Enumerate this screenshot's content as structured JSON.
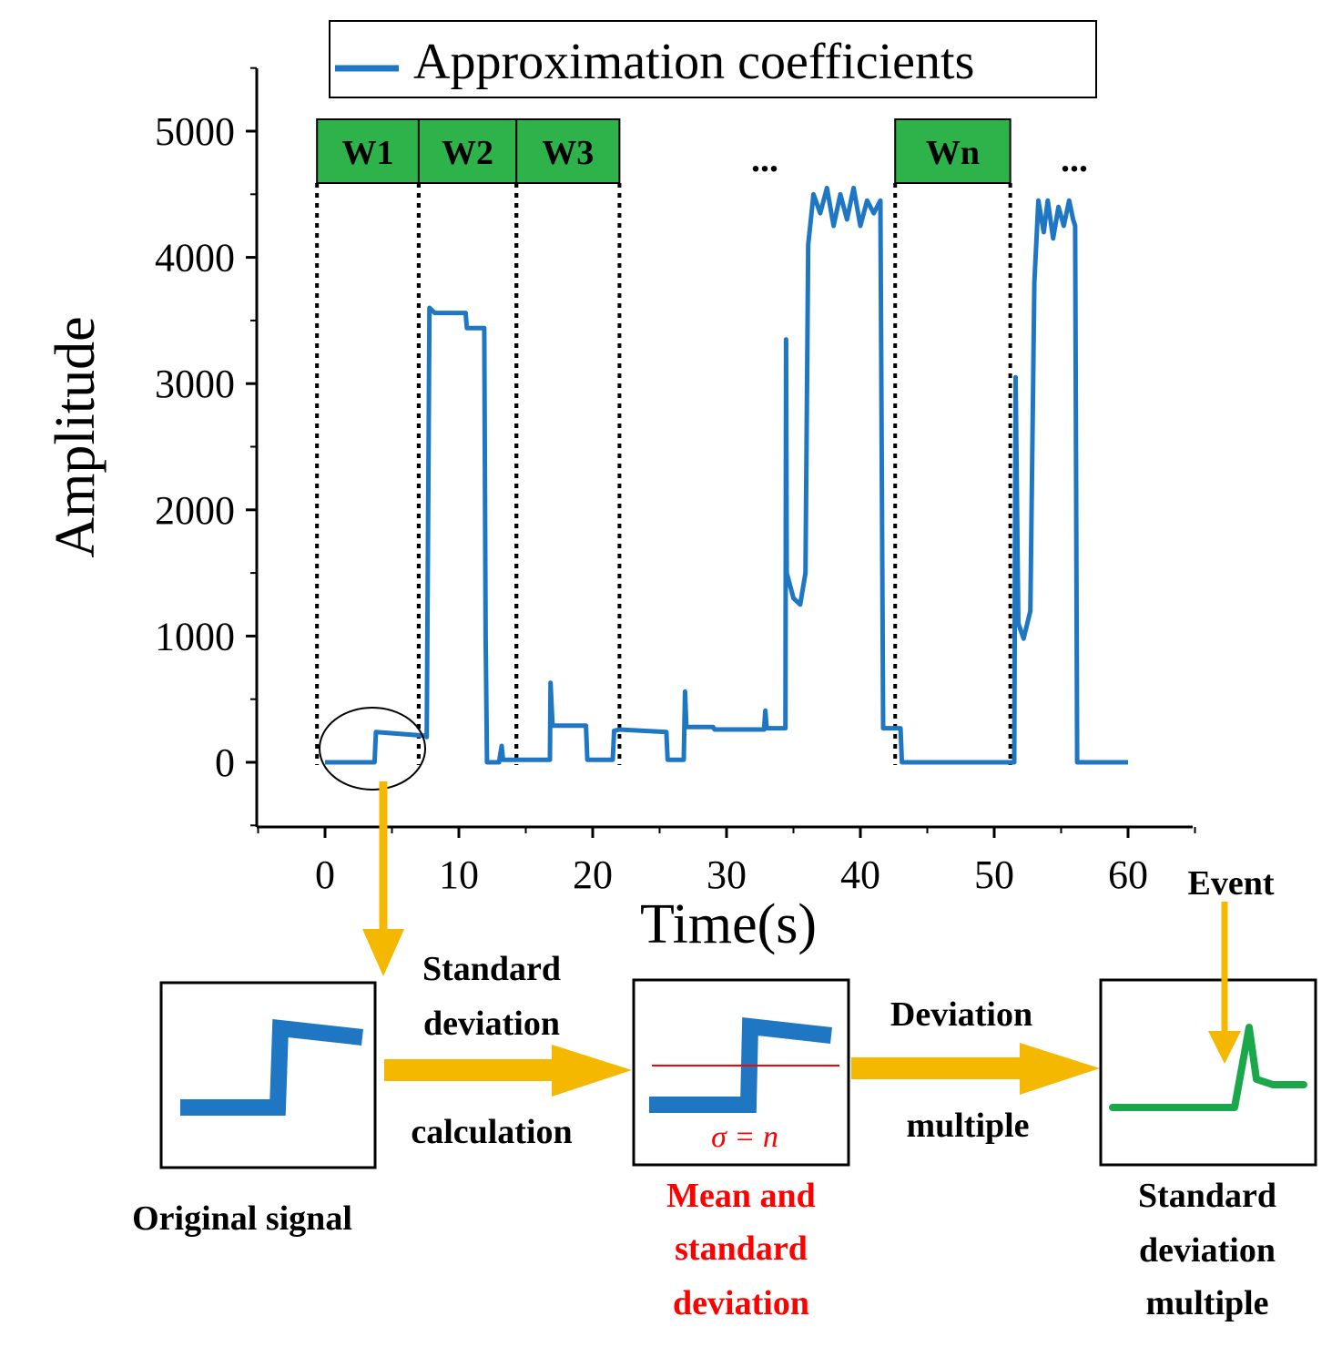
{
  "chart_data": {
    "type": "line",
    "title": "",
    "xlabel": "Time(s)",
    "ylabel": "Amplitude",
    "xlim": [
      -5,
      65
    ],
    "ylim": [
      -500,
      5500
    ],
    "xticks": [
      0,
      10,
      20,
      30,
      40,
      50,
      60
    ],
    "yticks": [
      0,
      1000,
      2000,
      3000,
      4000,
      5000
    ],
    "legend": {
      "label": "Approximation coefficients",
      "placement": "top"
    },
    "series": [
      {
        "name": "Approximation coefficients",
        "color": "#1f77c4",
        "points": [
          [
            0,
            0
          ],
          [
            3.7,
            0
          ],
          [
            3.8,
            240
          ],
          [
            7.5,
            210
          ],
          [
            7.6,
            200
          ],
          [
            7.8,
            3600
          ],
          [
            8.2,
            3560
          ],
          [
            10.5,
            3560
          ],
          [
            10.6,
            3440
          ],
          [
            11.9,
            3440
          ],
          [
            12.0,
            1000
          ],
          [
            12.1,
            0
          ],
          [
            13,
            0
          ],
          [
            13.2,
            130
          ],
          [
            13.3,
            20
          ],
          [
            16.8,
            20
          ],
          [
            16.85,
            630
          ],
          [
            17,
            290
          ],
          [
            19.5,
            290
          ],
          [
            19.6,
            20
          ],
          [
            21.5,
            20
          ],
          [
            21.6,
            250
          ],
          [
            22,
            260
          ],
          [
            25.5,
            240
          ],
          [
            25.6,
            20
          ],
          [
            26.8,
            20
          ],
          [
            26.9,
            560
          ],
          [
            27,
            280
          ],
          [
            29,
            280
          ],
          [
            29.1,
            260
          ],
          [
            32.8,
            260
          ],
          [
            32.9,
            410
          ],
          [
            33,
            270
          ],
          [
            34.4,
            270
          ],
          [
            34.45,
            3350
          ],
          [
            34.5,
            1500
          ],
          [
            35,
            1300
          ],
          [
            35.5,
            1250
          ],
          [
            35.9,
            1500
          ],
          [
            36.1,
            4100
          ],
          [
            36.5,
            4500
          ],
          [
            37,
            4350
          ],
          [
            37.5,
            4550
          ],
          [
            38,
            4250
          ],
          [
            38.5,
            4500
          ],
          [
            39,
            4300
          ],
          [
            39.5,
            4550
          ],
          [
            40,
            4250
          ],
          [
            40.5,
            4450
          ],
          [
            41,
            4350
          ],
          [
            41.5,
            4450
          ],
          [
            41.7,
            270
          ],
          [
            43,
            270
          ],
          [
            43.1,
            0
          ],
          [
            51.5,
            0
          ],
          [
            51.6,
            3050
          ],
          [
            51.8,
            1100
          ],
          [
            52.2,
            980
          ],
          [
            52.7,
            1200
          ],
          [
            53,
            3800
          ],
          [
            53.3,
            4450
          ],
          [
            53.7,
            4200
          ],
          [
            54,
            4450
          ],
          [
            54.4,
            4150
          ],
          [
            54.8,
            4400
          ],
          [
            55.2,
            4250
          ],
          [
            55.6,
            4450
          ],
          [
            55.9,
            4300
          ],
          [
            56.05,
            4250
          ],
          [
            56.2,
            0
          ],
          [
            60,
            0
          ]
        ]
      }
    ],
    "windows": [
      {
        "label": "W1",
        "start": -0.6,
        "end": 7.0
      },
      {
        "label": "W2",
        "start": 7.0,
        "end": 14.3
      },
      {
        "label": "W3",
        "start": 14.3,
        "end": 22.0
      },
      {
        "label": "Wn",
        "start": 42.6,
        "end": 51.2
      }
    ],
    "ellipsis": [
      "...",
      "..."
    ],
    "window_color": "#2db34a"
  },
  "workflow": {
    "box1_caption": "Original signal",
    "arrow1_label_top_1": "Standard",
    "arrow1_label_top_2": "deviation",
    "arrow1_label_bottom": "calculation",
    "box2_formula": "σ = n",
    "box2_caption_1": "Mean and",
    "box2_caption_2": "standard",
    "box2_caption_3": "deviation",
    "arrow2_label_top": "Deviation",
    "arrow2_label_bottom": "multiple",
    "event_label": "Event",
    "box3_caption_1": "Standard",
    "box3_caption_2": "deviation",
    "box3_caption_3": "multiple",
    "arrow_color": "#f5b800",
    "signal_color": "#1f77c4",
    "multiple_color": "#1aa84a",
    "mean_line_color": "#ff0000"
  }
}
